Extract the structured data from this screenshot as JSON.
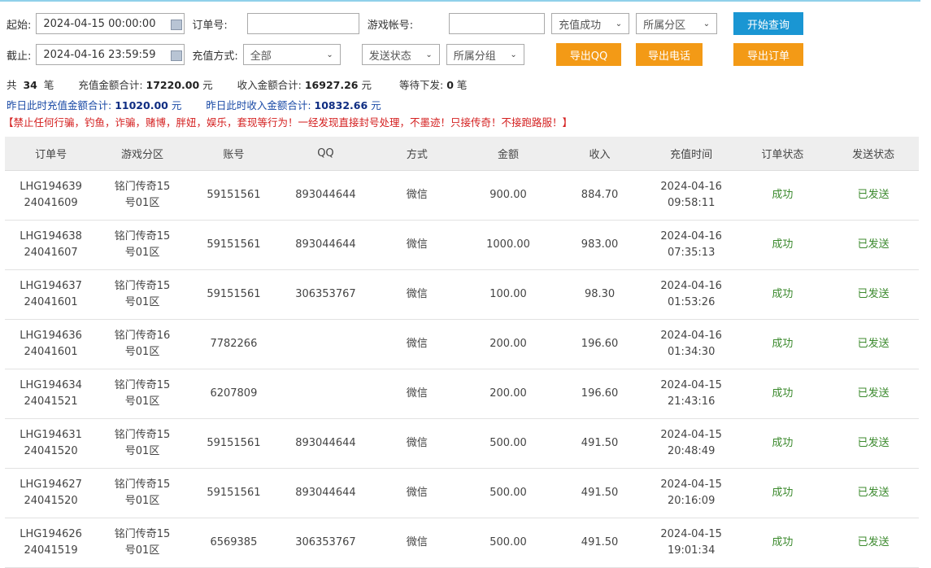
{
  "filters": {
    "start_label": "起始:",
    "start_value": "2024-04-15 00:00:00",
    "end_label": "截止:",
    "end_value": "2024-04-16 23:59:59",
    "order_label": "订单号:",
    "order_value": "",
    "account_label": "游戏帐号:",
    "account_value": "",
    "method_label": "充值方式:",
    "method_value": "全部",
    "status_select": "充值成功",
    "zone_select": "所属分区",
    "send_select": "发送状态",
    "group_select": "所属分组",
    "query_btn": "开始查询",
    "export_qq": "导出QQ",
    "export_phone": "导出电话",
    "export_order": "导出订单"
  },
  "stats": {
    "count_prefix": "共",
    "count": "34",
    "count_suffix": "笔",
    "recharge_label": "充值金额合计:",
    "recharge_total": "17220.00",
    "unit": "元",
    "income_label": "收入金额合计:",
    "income_total": "16927.26",
    "pending_label": "等待下发:",
    "pending": "0",
    "pending_suffix": "笔",
    "yday_recharge_label": "昨日此时充值金额合计:",
    "yday_recharge": "11020.00",
    "yday_income_label": "昨日此时收入金额合计:",
    "yday_income": "10832.66",
    "notice": "【禁止任何行骗，钓鱼，诈骗，赌博，胖妞，娱乐，套现等行为！一经发现直接封号处理，不墨迹！只接传奇！不接跑路服！】"
  },
  "table": {
    "headers": [
      "订单号",
      "游戏分区",
      "账号",
      "QQ",
      "方式",
      "金额",
      "收入",
      "充值时间",
      "订单状态",
      "发送状态"
    ],
    "rows": [
      [
        "LHG194639",
        "24041609",
        "铭门传奇15",
        "号01区",
        "59151561",
        "893044644",
        "微信",
        "900.00",
        "884.70",
        "2024-04-16",
        "09:58:11",
        "成功",
        "已发送"
      ],
      [
        "LHG194638",
        "24041607",
        "铭门传奇15",
        "号01区",
        "59151561",
        "893044644",
        "微信",
        "1000.00",
        "983.00",
        "2024-04-16",
        "07:35:13",
        "成功",
        "已发送"
      ],
      [
        "LHG194637",
        "24041601",
        "铭门传奇15",
        "号01区",
        "59151561",
        "306353767",
        "微信",
        "100.00",
        "98.30",
        "2024-04-16",
        "01:53:26",
        "成功",
        "已发送"
      ],
      [
        "LHG194636",
        "24041601",
        "铭门传奇16",
        "号01区",
        "7782266",
        "",
        "微信",
        "200.00",
        "196.60",
        "2024-04-16",
        "01:34:30",
        "成功",
        "已发送"
      ],
      [
        "LHG194634",
        "24041521",
        "铭门传奇15",
        "号01区",
        "6207809",
        "",
        "微信",
        "200.00",
        "196.60",
        "2024-04-15",
        "21:43:16",
        "成功",
        "已发送"
      ],
      [
        "LHG194631",
        "24041520",
        "铭门传奇15",
        "号01区",
        "59151561",
        "893044644",
        "微信",
        "500.00",
        "491.50",
        "2024-04-15",
        "20:48:49",
        "成功",
        "已发送"
      ],
      [
        "LHG194627",
        "24041520",
        "铭门传奇15",
        "号01区",
        "59151561",
        "893044644",
        "微信",
        "500.00",
        "491.50",
        "2024-04-15",
        "20:16:09",
        "成功",
        "已发送"
      ],
      [
        "LHG194626",
        "24041519",
        "铭门传奇15",
        "号01区",
        "6569385",
        "306353767",
        "微信",
        "500.00",
        "491.50",
        "2024-04-15",
        "19:01:34",
        "成功",
        "已发送"
      ]
    ]
  }
}
